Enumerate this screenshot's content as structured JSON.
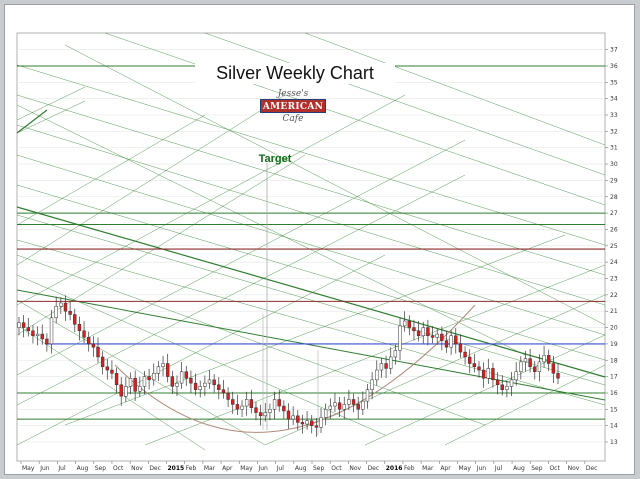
{
  "chart_data": {
    "type": "candlestick",
    "title": "Silver Weekly Chart",
    "xlabel": "",
    "ylabel": "",
    "ylim": [
      12,
      38
    ],
    "yticks": [
      13,
      14,
      15,
      16,
      17,
      18,
      19,
      20,
      21,
      22,
      23,
      24,
      25,
      26,
      27,
      28,
      29,
      30,
      31,
      32,
      33,
      34,
      35,
      36,
      37
    ],
    "xtick_labels": [
      {
        "label": "May",
        "bold": false
      },
      {
        "label": "Jun",
        "bold": false
      },
      {
        "label": "Jul",
        "bold": false
      },
      {
        "label": "Aug",
        "bold": false
      },
      {
        "label": "Sep",
        "bold": false
      },
      {
        "label": "Oct",
        "bold": false
      },
      {
        "label": "Nov",
        "bold": false
      },
      {
        "label": "Dec",
        "bold": false
      },
      {
        "label": "2015",
        "bold": true
      },
      {
        "label": "Feb",
        "bold": false
      },
      {
        "label": "Mar",
        "bold": false
      },
      {
        "label": "Apr",
        "bold": false
      },
      {
        "label": "May",
        "bold": false
      },
      {
        "label": "Jun",
        "bold": false
      },
      {
        "label": "Jul",
        "bold": false
      },
      {
        "label": "Aug",
        "bold": false
      },
      {
        "label": "Sep",
        "bold": false
      },
      {
        "label": "Oct",
        "bold": false
      },
      {
        "label": "Nov",
        "bold": false
      },
      {
        "label": "Dec",
        "bold": false
      },
      {
        "label": "2016",
        "bold": true
      },
      {
        "label": "Feb",
        "bold": false
      },
      {
        "label": "Mar",
        "bold": false
      },
      {
        "label": "Apr",
        "bold": false
      },
      {
        "label": "May",
        "bold": false
      },
      {
        "label": "Jun",
        "bold": false
      },
      {
        "label": "Jul",
        "bold": false
      },
      {
        "label": "Aug",
        "bold": false
      },
      {
        "label": "Sep",
        "bold": false
      },
      {
        "label": "Oct",
        "bold": false
      },
      {
        "label": "Nov",
        "bold": false
      },
      {
        "label": "Dec",
        "bold": false
      }
    ],
    "closes": [
      20.3,
      20.0,
      19.8,
      19.5,
      19.6,
      19.3,
      19.0,
      20.6,
      21.3,
      21.5,
      21.0,
      20.8,
      20.2,
      19.8,
      19.4,
      19.0,
      18.8,
      18.2,
      17.6,
      17.4,
      17.2,
      16.5,
      15.8,
      16.4,
      16.9,
      16.1,
      16.4,
      17.0,
      16.8,
      17.2,
      17.6,
      17.8,
      17.0,
      16.4,
      16.6,
      17.3,
      16.9,
      16.6,
      16.2,
      16.4,
      16.6,
      16.8,
      16.5,
      16.2,
      16.0,
      15.6,
      15.3,
      15.0,
      15.2,
      15.6,
      15.1,
      14.8,
      14.6,
      14.8,
      15.0,
      15.6,
      15.2,
      14.9,
      14.4,
      14.6,
      14.2,
      14.1,
      14.3,
      14.0,
      13.9,
      14.5,
      15.0,
      15.2,
      15.4,
      15.0,
      15.3,
      15.6,
      15.3,
      15.0,
      15.5,
      16.2,
      16.8,
      17.4,
      17.8,
      17.5,
      18.2,
      18.6,
      20.1,
      20.4,
      20.0,
      19.8,
      19.5,
      20.0,
      19.5,
      19.4,
      19.6,
      19.2,
      18.8,
      19.5,
      19.0,
      18.5,
      18.2,
      17.8,
      17.6,
      17.4,
      16.9,
      17.5,
      16.8,
      16.5,
      16.2,
      16.4,
      16.8,
      17.3,
      17.9,
      18.1,
      17.6,
      17.3,
      17.9,
      18.3,
      17.8,
      17.2,
      16.9
    ],
    "y_start": 20.0,
    "colors": {
      "up_candle": "#ffffff",
      "down_candle": "#e01b1b",
      "candle_outline": "#333333",
      "trendline": "#1e7a1e",
      "horizontal_support": "#2f7d2f",
      "resistance_line": "#8b2b2b",
      "blue_line": "#3a4fd0",
      "arc": "#b08a7c"
    },
    "grid": true,
    "legend": "none",
    "annotation": "Target"
  },
  "logo": {
    "top": "Jesse's",
    "main": "AMERICAN",
    "bottom": "Cafe"
  }
}
